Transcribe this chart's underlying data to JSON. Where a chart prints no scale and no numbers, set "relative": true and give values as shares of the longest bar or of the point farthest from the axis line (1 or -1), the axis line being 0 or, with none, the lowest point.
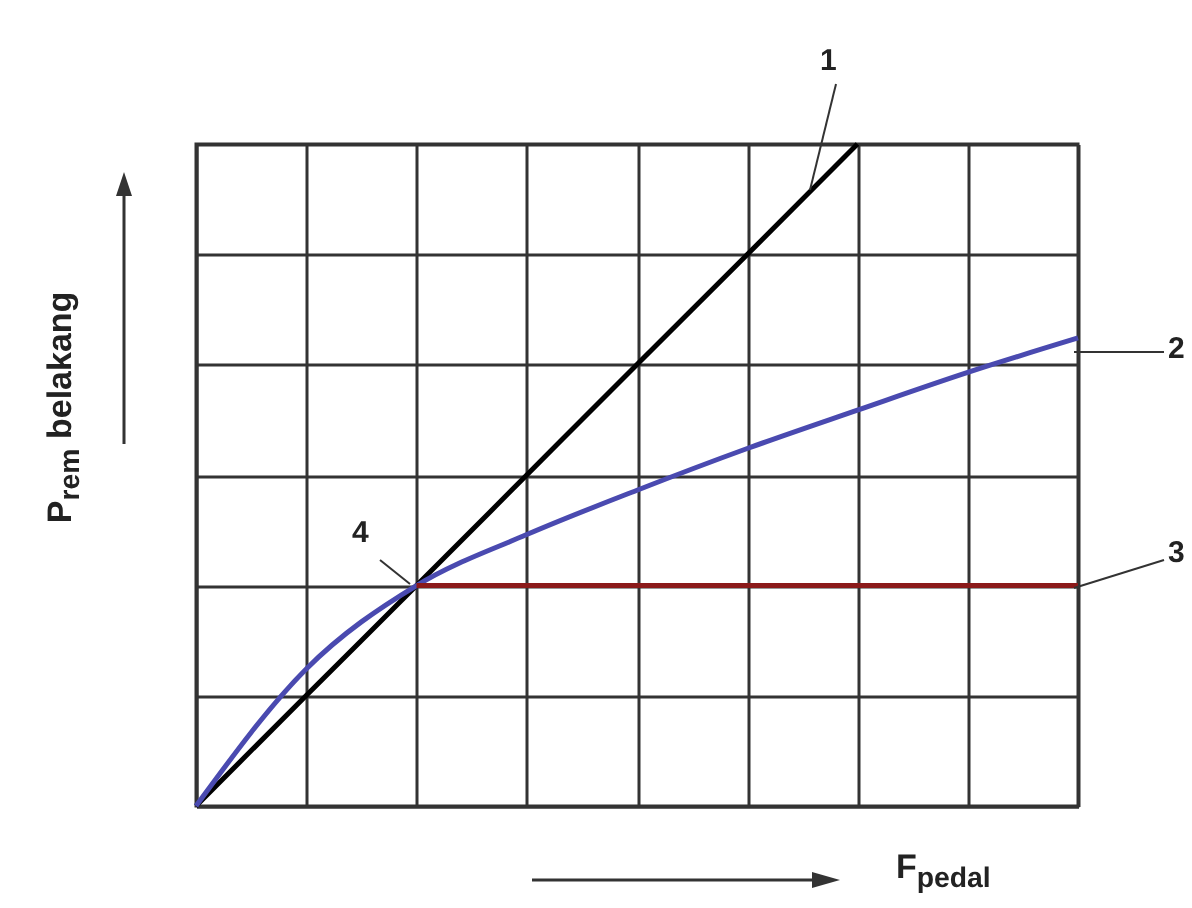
{
  "chart_data": {
    "type": "line",
    "relative": true,
    "xlabel": "F$_{pedal}$",
    "ylabel": "P$_{rem}$ belakang",
    "categories": [
      null,
      null,
      null,
      null,
      null,
      null,
      null,
      null,
      null
    ],
    "series": [
      {
        "color": "#000000",
        "values": [
          0,
          0.167,
          0.333,
          0.5,
          0.667,
          0.833,
          1,
          null,
          null
        ]
      },
      {
        "color": "#4a4ab0",
        "values": [
          0,
          0.207,
          0.333,
          0.41,
          0.477,
          0.54,
          0.598,
          0.655,
          0.707
        ]
      },
      {
        "color": "#8b1a1a",
        "values": [
          null,
          null,
          0.333,
          0.333,
          0.333,
          0.333,
          0.333,
          0.333,
          0.333
        ]
      }
    ],
    "annotations": [
      "1",
      "2",
      "3",
      "4"
    ],
    "grid": true,
    "legend": false,
    "marker": "none",
    "line_style": "solid"
  }
}
